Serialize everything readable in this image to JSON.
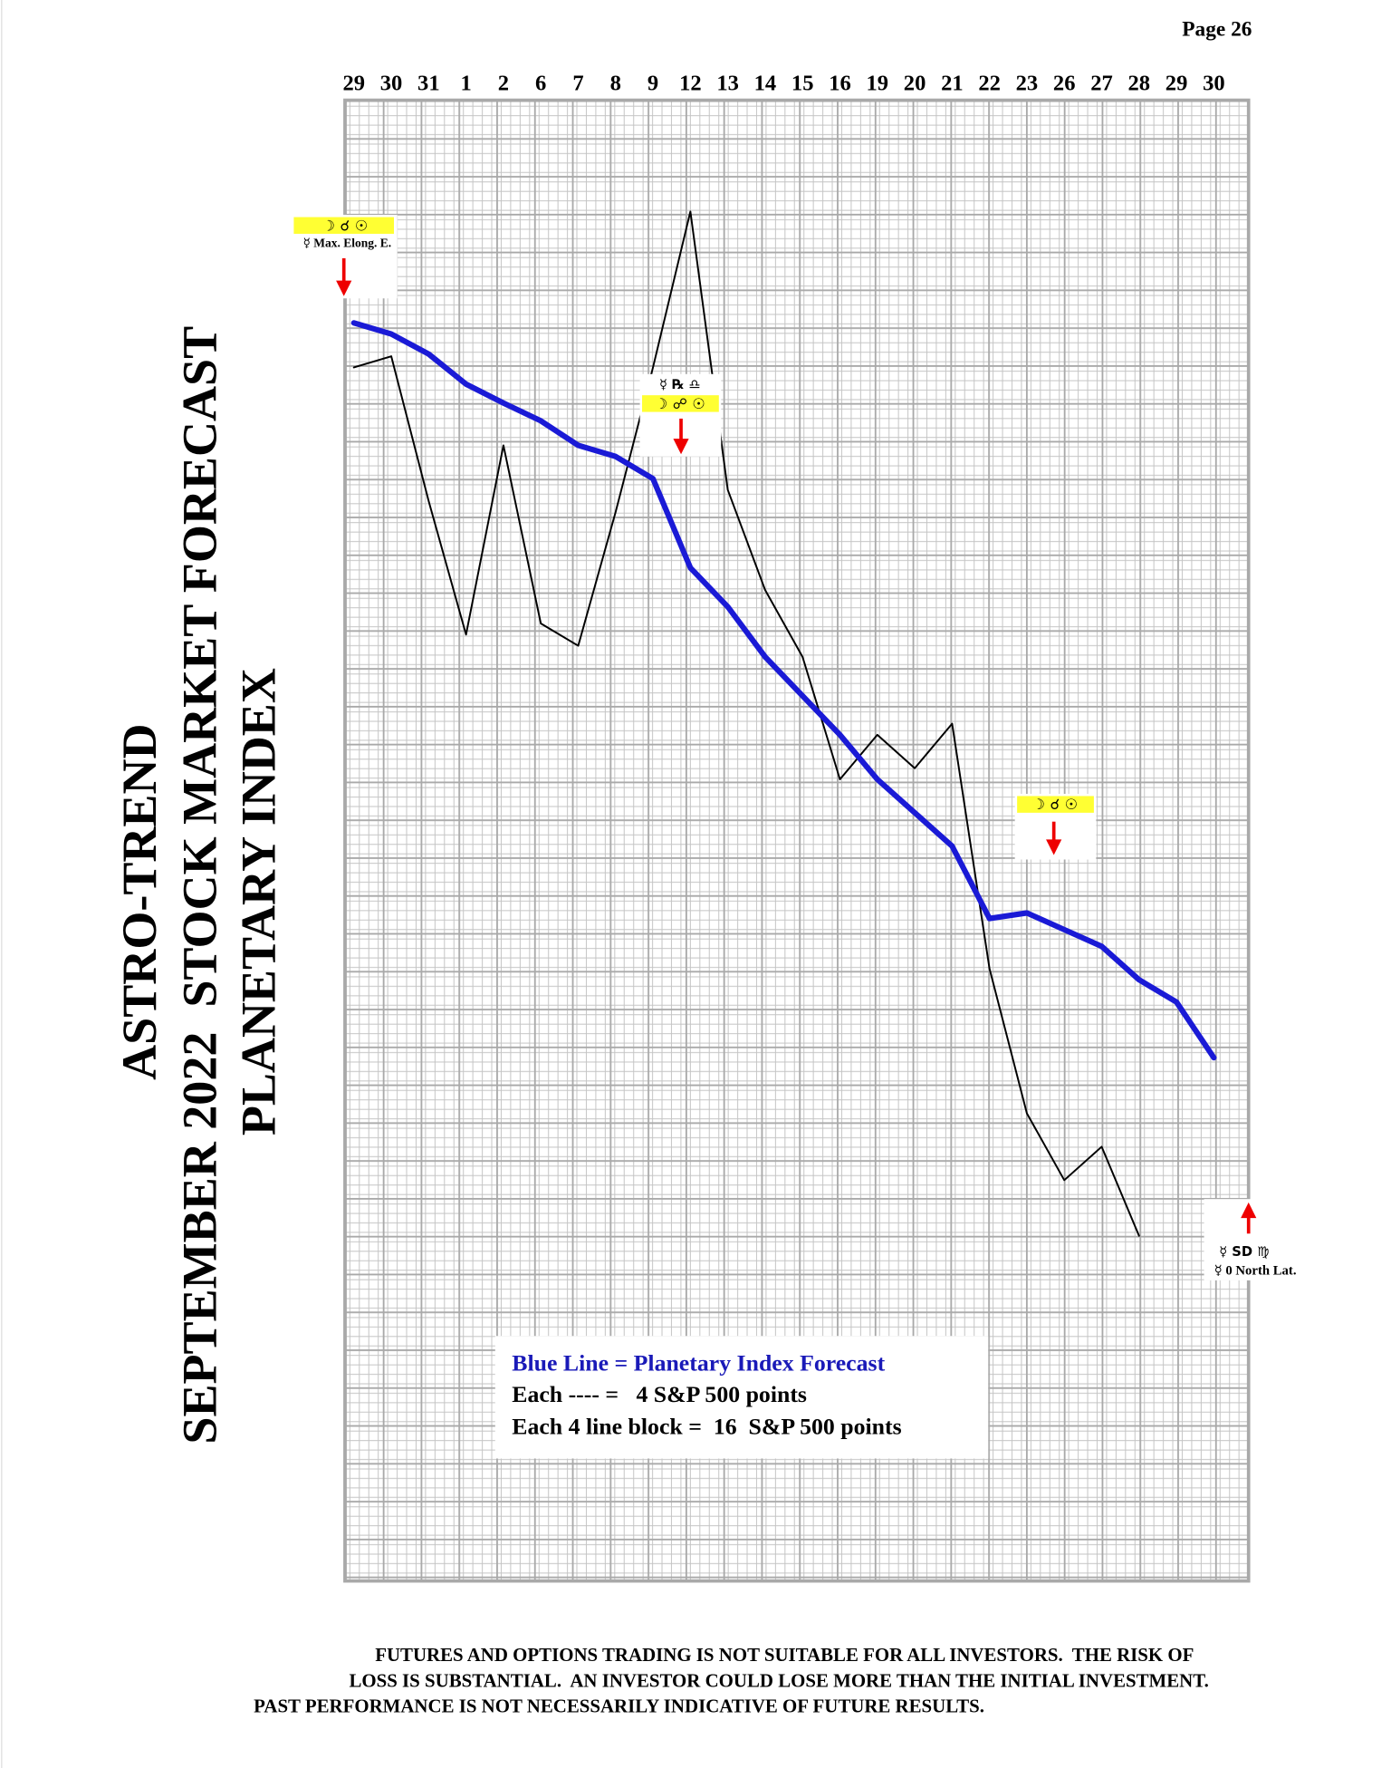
{
  "header": {
    "page": "Page 26"
  },
  "title": {
    "lines": [
      "ASTRO-TREND",
      "SEPTEMBER 2022  STOCK MARKET FORECAST",
      "PLANETARY INDEX"
    ]
  },
  "chart_data": {
    "type": "line",
    "categories": [
      "29",
      "30",
      "31",
      "1",
      "2",
      "6",
      "7",
      "8",
      "9",
      "12",
      "13",
      "14",
      "15",
      "16",
      "19",
      "20",
      "21",
      "22",
      "23",
      "26",
      "27",
      "28",
      "29",
      "30"
    ],
    "ylim": [
      0,
      1330
    ],
    "series": [
      {
        "color": "#1a1ad6",
        "values": [
          1130,
          1120,
          1102,
          1075,
          1058,
          1042,
          1020,
          1010,
          990,
          910,
          875,
          830,
          795,
          760,
          720,
          690,
          660,
          595,
          600,
          585,
          570,
          540,
          520,
          470
        ]
      },
      {
        "color": "#000000",
        "values": [
          1090,
          1100,
          970,
          850,
          1020,
          860,
          840,
          960,
          1090,
          1230,
          980,
          890,
          830,
          720,
          760,
          730,
          770,
          550,
          420,
          360,
          390,
          310,
          null,
          null
        ]
      }
    ]
  },
  "annotations": [
    {
      "symbols": "☽ ☌ ☉",
      "note": "☿ Max. Elong. E."
    },
    {
      "symbols_top": "☿ ℞ ♎",
      "symbols": "☽ ☍ ☉"
    },
    {
      "symbols": "☽ ☌ ☉"
    },
    {
      "symbols": "☿ SD ♍",
      "note": "☿ 0 North Lat."
    }
  ],
  "legend": {
    "lines": [
      "Blue Line = Planetary Index Forecast",
      "Each ---- =   4 S&P 500 points",
      "Each 4 line block =  16  S&P 500 points"
    ]
  },
  "disclaimer": {
    "lines": [
      "FUTURES AND OPTIONS TRADING IS NOT SUITABLE FOR ALL INVESTORS.  THE RISK OF",
      "LOSS IS SUBSTANTIAL.  AN INVESTOR COULD LOSE MORE THAN THE INITIAL INVESTMENT.",
      "PAST PERFORMANCE IS NOT NECESSARILY INDICATIVE OF FUTURE RESULTS."
    ]
  }
}
